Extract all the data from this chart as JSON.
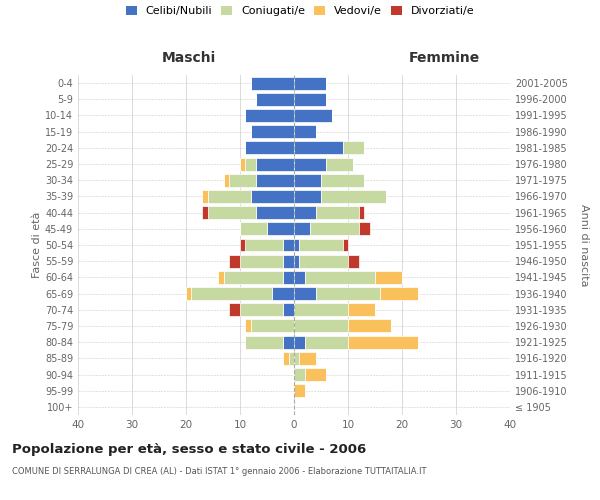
{
  "age_groups": [
    "100+",
    "95-99",
    "90-94",
    "85-89",
    "80-84",
    "75-79",
    "70-74",
    "65-69",
    "60-64",
    "55-59",
    "50-54",
    "45-49",
    "40-44",
    "35-39",
    "30-34",
    "25-29",
    "20-24",
    "15-19",
    "10-14",
    "5-9",
    "0-4"
  ],
  "birth_years": [
    "≤ 1905",
    "1906-1910",
    "1911-1915",
    "1916-1920",
    "1921-1925",
    "1926-1930",
    "1931-1935",
    "1936-1940",
    "1941-1945",
    "1946-1950",
    "1951-1955",
    "1956-1960",
    "1961-1965",
    "1966-1970",
    "1971-1975",
    "1976-1980",
    "1981-1985",
    "1986-1990",
    "1991-1995",
    "1996-2000",
    "2001-2005"
  ],
  "maschi": {
    "celibi": [
      0,
      0,
      0,
      0,
      2,
      0,
      2,
      4,
      2,
      2,
      2,
      5,
      7,
      8,
      7,
      7,
      9,
      8,
      9,
      7,
      8
    ],
    "coniugati": [
      0,
      0,
      0,
      1,
      7,
      8,
      8,
      15,
      11,
      8,
      7,
      5,
      9,
      8,
      5,
      2,
      0,
      0,
      0,
      0,
      0
    ],
    "vedovi": [
      0,
      0,
      0,
      1,
      0,
      1,
      0,
      1,
      1,
      0,
      0,
      0,
      0,
      1,
      1,
      1,
      0,
      0,
      0,
      0,
      0
    ],
    "divorziati": [
      0,
      0,
      0,
      0,
      0,
      0,
      2,
      0,
      0,
      2,
      1,
      0,
      1,
      0,
      0,
      0,
      0,
      0,
      0,
      0,
      0
    ]
  },
  "femmine": {
    "nubili": [
      0,
      0,
      0,
      0,
      2,
      0,
      0,
      4,
      2,
      1,
      1,
      3,
      4,
      5,
      5,
      6,
      9,
      4,
      7,
      6,
      6
    ],
    "coniugate": [
      0,
      0,
      2,
      1,
      8,
      10,
      10,
      12,
      13,
      9,
      8,
      9,
      8,
      12,
      8,
      5,
      4,
      0,
      0,
      0,
      0
    ],
    "vedove": [
      0,
      2,
      4,
      3,
      13,
      8,
      5,
      7,
      5,
      0,
      0,
      0,
      0,
      0,
      0,
      0,
      0,
      0,
      0,
      0,
      0
    ],
    "divorziate": [
      0,
      0,
      0,
      0,
      0,
      0,
      0,
      0,
      0,
      2,
      1,
      2,
      1,
      0,
      0,
      0,
      0,
      0,
      0,
      0,
      0
    ]
  },
  "colors": {
    "celibi_nubili": "#4472c4",
    "coniugati_e": "#c5d9a0",
    "vedovi_e": "#fac05c",
    "divorziati_e": "#c0392b"
  },
  "xlim": 40,
  "title": "Popolazione per età, sesso e stato civile - 2006",
  "subtitle": "COMUNE DI SERRALUNGA DI CREA (AL) - Dati ISTAT 1° gennaio 2006 - Elaborazione TUTTAITALIA.IT",
  "ylabel_left": "Fasce di età",
  "ylabel_right": "Anni di nascita",
  "xlabel_left": "Maschi",
  "xlabel_right": "Femmine",
  "legend_labels": [
    "Celibi/Nubili",
    "Coniugati/e",
    "Vedovi/e",
    "Divorziati/e"
  ],
  "bar_height": 0.8
}
